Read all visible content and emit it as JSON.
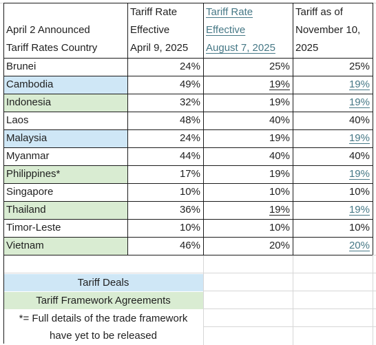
{
  "header": {
    "country_col": [
      "April 2 Announced",
      "Tariff Rates Country"
    ],
    "april_col": [
      "Tariff Rate",
      "Effective",
      "April 9, 2025"
    ],
    "august_col": [
      "Tariff Rate",
      "Effective",
      "August 7, 2025"
    ],
    "nov_col": [
      "Tariff as of",
      "November 10,",
      "2025"
    ]
  },
  "rows": [
    {
      "country": "Brunei",
      "april2": "24%",
      "aug7": "25%",
      "nov10": "25%"
    },
    {
      "country": "Cambodia",
      "april2": "49%",
      "aug7": "19%",
      "nov10": "19%"
    },
    {
      "country": "Indonesia",
      "april2": "32%",
      "aug7": "19%",
      "nov10": "19%"
    },
    {
      "country": "Laos",
      "april2": "48%",
      "aug7": "40%",
      "nov10": "40%"
    },
    {
      "country": "Malaysia",
      "april2": "24%",
      "aug7": "19%",
      "nov10": "19%"
    },
    {
      "country": "Myanmar",
      "april2": "44%",
      "aug7": "40%",
      "nov10": "40%"
    },
    {
      "country": "Philippines*",
      "april2": "17%",
      "aug7": "19%",
      "nov10": "19%"
    },
    {
      "country": "Singapore",
      "april2": "10%",
      "aug7": "10%",
      "nov10": "10%"
    },
    {
      "country": "Thailand",
      "april2": "36%",
      "aug7": "19%",
      "nov10": "19%"
    },
    {
      "country": "Timor-Leste",
      "april2": "10%",
      "aug7": "10%",
      "nov10": "10%"
    },
    {
      "country": "Vietnam",
      "april2": "46%",
      "aug7": "20%",
      "nov10": "20%"
    }
  ],
  "legend": {
    "deals": "Tariff Deals",
    "framework": "Tariff Framework Agreements",
    "note_line1": "*= Full details of the trade framework",
    "note_line2": "have yet to be released"
  },
  "colors": {
    "deals_fill": "#cfe7f6",
    "framework_fill": "#d9ecd2",
    "link": "#467886"
  }
}
